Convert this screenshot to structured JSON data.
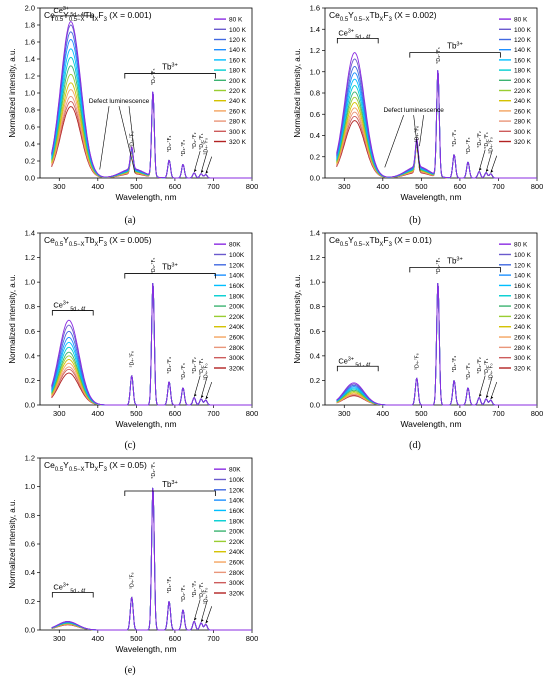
{
  "figure": {
    "x_axis_label": "Wavelength, nm",
    "y_axis_label": "Normalized intensity, a.u.",
    "tb_band_label": "Tb",
    "tb_band_sup": "3+",
    "ce_band_label": "Ce",
    "ce_band_sup": "3+",
    "ce_band_sub": "5d - 4f",
    "defect_label": "Defect luminescence",
    "transition_labels": [
      "⁵D₄-⁷F₆",
      "⁵D₄-⁷F₅",
      "⁵D₄-⁷F₄",
      "⁵D₄-⁷F₃",
      "⁵D₄-⁷F₂",
      "⁵D₄-⁷F₁",
      "⁵D₄-⁷F₀"
    ],
    "series_colors": [
      "#8a2be2",
      "#6a5acd",
      "#4169e1",
      "#1e90ff",
      "#00bfff",
      "#00ced1",
      "#3cb371",
      "#9acd32",
      "#d4c200",
      "#f4a460",
      "#e9967a",
      "#cd5c5c",
      "#b22222"
    ]
  },
  "panels": [
    {
      "caption": "(a)",
      "title": {
        "pre": "Ce",
        "s1": "0.5",
        "y": "Y",
        "s2": "0.5−X",
        "tb": "Tb",
        "s3": "X",
        "f": "F",
        "s4": "3",
        "post": " (X = 0.001)"
      },
      "legend": [
        "80 K",
        "100 K",
        "120 K",
        "140 K",
        "160 K",
        "180 K",
        "200 K",
        "220 K",
        "240 K",
        "260 K",
        "280 K",
        "300 K",
        "320 K"
      ],
      "show_defect": true
    },
    {
      "caption": "(b)",
      "title": {
        "pre": "Ce",
        "s1": "0.5",
        "y": "Y",
        "s2": "0.5−X",
        "tb": "Tb",
        "s3": "X",
        "f": "F",
        "s4": "3",
        "post": " (X = 0.002)"
      },
      "legend": [
        "80 K",
        "100 K",
        "120 K",
        "140 K",
        "160 K",
        "180 K",
        "200 K",
        "220 K",
        "240 K",
        "260 K",
        "280 K",
        "300 K",
        "320 K"
      ],
      "show_defect": true
    },
    {
      "caption": "(c)",
      "title": {
        "pre": "Ce",
        "s1": "0.5",
        "y": "Y",
        "s2": "0.5−X",
        "tb": "Tb",
        "s3": "X",
        "f": "F",
        "s4": "3",
        "post": " (X = 0.005)"
      },
      "legend": [
        "80K",
        "100K",
        "120K",
        "140K",
        "160K",
        "180K",
        "200K",
        "220K",
        "240K",
        "260K",
        "280K",
        "300K",
        "320K"
      ],
      "show_defect": false
    },
    {
      "caption": "(d)",
      "title": {
        "pre": "Ce",
        "s1": "0.5",
        "y": "Y",
        "s2": "0.5−X",
        "tb": "Tb",
        "s3": "X",
        "f": "F",
        "s4": "3",
        "post": " (X = 0.01)"
      },
      "legend": [
        "80 K",
        "100 K",
        "120 K",
        "140 K",
        "160 K",
        "180 K",
        "200 K",
        "220 K",
        "240 K",
        "260 K",
        "280 K",
        "300 K",
        "320 K"
      ],
      "show_defect": false
    },
    {
      "caption": "(e)",
      "title": {
        "pre": "Ce",
        "s1": "0.5",
        "y": "Y",
        "s2": "0.5−X",
        "tb": "Tb",
        "s3": "X",
        "f": "F",
        "s4": "3",
        "post": " (X = 0.05)"
      },
      "legend": [
        "80K",
        "100K",
        "120K",
        "140K",
        "160K",
        "180K",
        "200K",
        "220K",
        "240K",
        "260K",
        "280K",
        "300K",
        "320K"
      ],
      "show_defect": false
    }
  ],
  "chart_data": [
    {
      "type": "line",
      "title": "Ce0.5Y0.5−XTbXF3 (X = 0.001)",
      "xlabel": "Wavelength, nm",
      "ylabel": "Normalized intensity, a.u.",
      "xlim": [
        250,
        800
      ],
      "ylim": [
        0,
        2.0
      ],
      "xticks": [
        300,
        400,
        500,
        600,
        700,
        800
      ],
      "yticks": [
        0.0,
        0.2,
        0.4,
        0.6,
        0.8,
        1.0,
        1.2,
        1.4,
        1.6,
        1.8,
        2.0
      ],
      "legend_position": "top-right",
      "temperatures_K": [
        80,
        100,
        120,
        140,
        160,
        180,
        200,
        220,
        240,
        260,
        280,
        300,
        320
      ],
      "ce_peak_nm": 330,
      "ce_peak_values": [
        1.84,
        1.8,
        1.72,
        1.63,
        1.52,
        1.42,
        1.32,
        1.22,
        1.12,
        1.04,
        0.96,
        0.9,
        0.84
      ],
      "defect_peak_nm": 490,
      "tb_peaks": [
        {
          "x": 488,
          "y": 0.26
        },
        {
          "x": 543,
          "y": 1.0
        },
        {
          "x": 585,
          "y": 0.21
        },
        {
          "x": 621,
          "y": 0.16
        },
        {
          "x": 650,
          "y": 0.06
        },
        {
          "x": 668,
          "y": 0.05
        },
        {
          "x": 680,
          "y": 0.04
        }
      ]
    },
    {
      "type": "line",
      "title": "Ce0.5Y0.5−XTbXF3 (X = 0.002)",
      "xlabel": "Wavelength, nm",
      "ylabel": "Normalized intensity, a.u.",
      "xlim": [
        250,
        800
      ],
      "ylim": [
        0,
        1.6
      ],
      "xticks": [
        300,
        400,
        500,
        600,
        700,
        800
      ],
      "yticks": [
        0.0,
        0.2,
        0.4,
        0.6,
        0.8,
        1.0,
        1.2,
        1.4,
        1.6
      ],
      "legend_position": "top-right",
      "temperatures_K": [
        80,
        100,
        120,
        140,
        160,
        180,
        200,
        220,
        240,
        260,
        280,
        300,
        320
      ],
      "ce_peak_nm": 327,
      "ce_peak_values": [
        1.18,
        1.12,
        1.05,
        0.99,
        0.93,
        0.87,
        0.81,
        0.76,
        0.71,
        0.66,
        0.62,
        0.58,
        0.54
      ],
      "defect_peak_nm": 490,
      "tb_peaks": [
        {
          "x": 488,
          "y": 0.26
        },
        {
          "x": 543,
          "y": 1.0
        },
        {
          "x": 585,
          "y": 0.22
        },
        {
          "x": 621,
          "y": 0.15
        },
        {
          "x": 650,
          "y": 0.06
        },
        {
          "x": 668,
          "y": 0.05
        },
        {
          "x": 680,
          "y": 0.04
        }
      ]
    },
    {
      "type": "line",
      "title": "Ce0.5Y0.5−XTbXF3 (X = 0.005)",
      "xlabel": "Wavelength, nm",
      "ylabel": "Normalized intensity, a.u.",
      "xlim": [
        250,
        800
      ],
      "ylim": [
        0,
        1.4
      ],
      "xticks": [
        300,
        400,
        500,
        600,
        700,
        800
      ],
      "yticks": [
        0.0,
        0.2,
        0.4,
        0.6,
        0.8,
        1.0,
        1.2,
        1.4
      ],
      "legend_position": "top-right",
      "temperatures_K": [
        80,
        100,
        120,
        140,
        160,
        180,
        200,
        220,
        240,
        260,
        280,
        300,
        320
      ],
      "ce_peak_nm": 325,
      "ce_peak_values": [
        0.69,
        0.65,
        0.6,
        0.55,
        0.51,
        0.47,
        0.43,
        0.4,
        0.37,
        0.34,
        0.31,
        0.29,
        0.26
      ],
      "tb_peaks": [
        {
          "x": 488,
          "y": 0.24
        },
        {
          "x": 543,
          "y": 1.0
        },
        {
          "x": 585,
          "y": 0.19
        },
        {
          "x": 621,
          "y": 0.14
        },
        {
          "x": 650,
          "y": 0.06
        },
        {
          "x": 668,
          "y": 0.05
        },
        {
          "x": 680,
          "y": 0.04
        }
      ]
    },
    {
      "type": "line",
      "title": "Ce0.5Y0.5−XTbXF3 (X = 0.01)",
      "xlabel": "Wavelength, nm",
      "ylabel": "Normalized intensity, a.u.",
      "xlim": [
        250,
        800
      ],
      "ylim": [
        0,
        1.4
      ],
      "xticks": [
        300,
        400,
        500,
        600,
        700,
        800
      ],
      "yticks": [
        0.0,
        0.2,
        0.4,
        0.6,
        0.8,
        1.0,
        1.2,
        1.4
      ],
      "legend_position": "top-right",
      "temperatures_K": [
        80,
        100,
        120,
        140,
        160,
        180,
        200,
        220,
        240,
        260,
        280,
        300,
        320
      ],
      "ce_peak_nm": 325,
      "ce_peak_values": [
        0.18,
        0.17,
        0.16,
        0.15,
        0.14,
        0.13,
        0.12,
        0.11,
        0.1,
        0.09,
        0.085,
        0.08,
        0.075
      ],
      "tb_peaks": [
        {
          "x": 488,
          "y": 0.22
        },
        {
          "x": 543,
          "y": 1.0
        },
        {
          "x": 585,
          "y": 0.2
        },
        {
          "x": 621,
          "y": 0.14
        },
        {
          "x": 650,
          "y": 0.06
        },
        {
          "x": 668,
          "y": 0.05
        },
        {
          "x": 680,
          "y": 0.04
        }
      ]
    },
    {
      "type": "line",
      "title": "Ce0.5Y0.5−XTbXF3 (X = 0.05)",
      "xlabel": "Wavelength, nm",
      "ylabel": "Normalized intensity, a.u.",
      "xlim": [
        250,
        800
      ],
      "ylim": [
        0,
        1.2
      ],
      "xticks": [
        300,
        400,
        500,
        600,
        700,
        800
      ],
      "yticks": [
        0.0,
        0.2,
        0.4,
        0.6,
        0.8,
        1.0,
        1.2
      ],
      "legend_position": "top-right",
      "temperatures_K": [
        80,
        100,
        120,
        140,
        160,
        180,
        200,
        220,
        240,
        260,
        280,
        300,
        320
      ],
      "ce_peak_nm": 322,
      "ce_peak_values": [
        0.06,
        0.058,
        0.056,
        0.054,
        0.052,
        0.05,
        0.048,
        0.046,
        0.044,
        0.042,
        0.04,
        0.038,
        0.036
      ],
      "tb_peaks": [
        {
          "x": 488,
          "y": 0.23
        },
        {
          "x": 543,
          "y": 1.0
        },
        {
          "x": 585,
          "y": 0.2
        },
        {
          "x": 621,
          "y": 0.14
        },
        {
          "x": 650,
          "y": 0.06
        },
        {
          "x": 668,
          "y": 0.05
        },
        {
          "x": 680,
          "y": 0.04
        }
      ]
    }
  ]
}
